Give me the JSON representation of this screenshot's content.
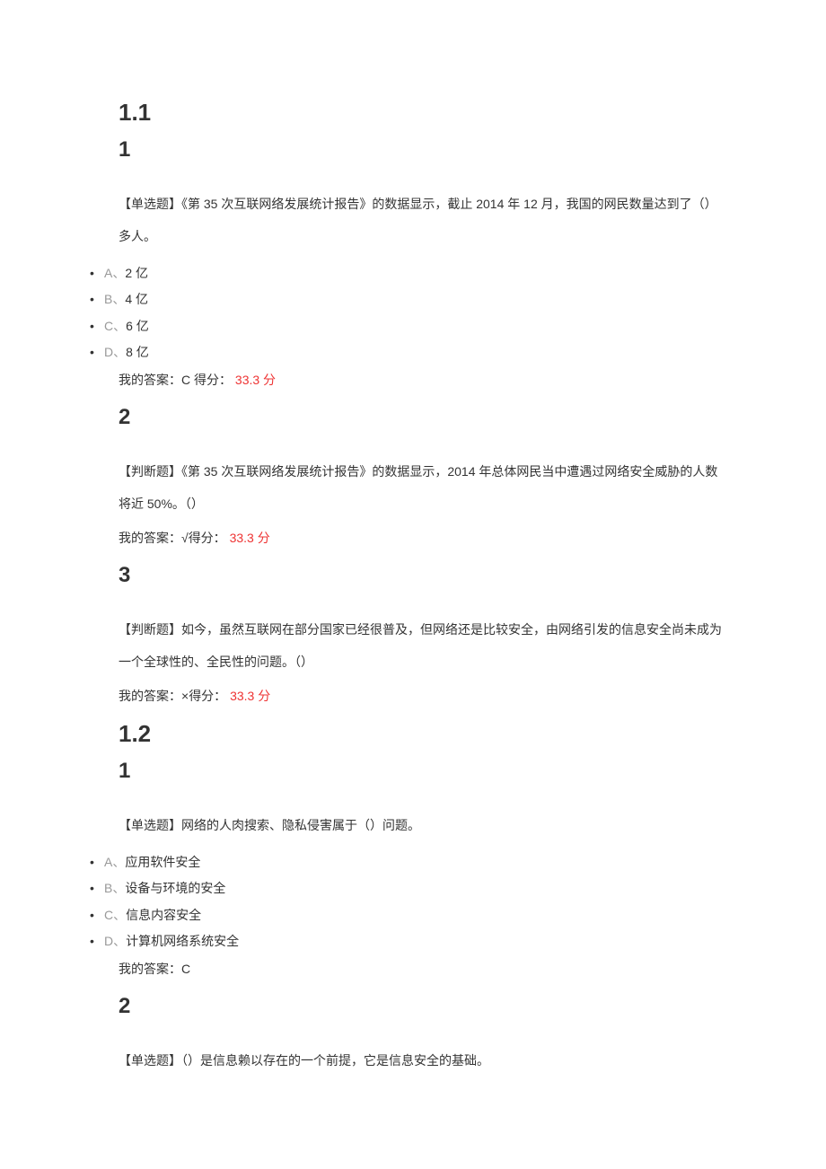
{
  "colors": {
    "text": "#333333",
    "muted": "#999999",
    "score": "#ee3333",
    "bg": "#ffffff"
  },
  "sections": [
    {
      "num": "1.1",
      "questions": [
        {
          "num": "1",
          "type": "【单选题】",
          "text": "《第 35 次互联网络发展统计报告》的数据显示，截止 2014 年 12 月，我国的网民数量达到了（）多人。",
          "options": [
            {
              "letter": "A",
              "text": "2 亿"
            },
            {
              "letter": "B",
              "text": "4 亿"
            },
            {
              "letter": "C",
              "text": "6 亿"
            },
            {
              "letter": "D",
              "text": "8 亿"
            }
          ],
          "answer_label": "我的答案：",
          "answer_value": "C",
          "score_label": " 得分： ",
          "score_value": "33.3",
          "score_unit": " 分"
        },
        {
          "num": "2",
          "type": "【判断题】",
          "text": "《第 35 次互联网络发展统计报告》的数据显示，2014 年总体网民当中遭遇过网络安全威胁的人数将近 50%。（）",
          "answer_label": "我的答案：",
          "answer_symbol": "√",
          "score_label": "得分： ",
          "score_value": "33.3",
          "score_unit": " 分"
        },
        {
          "num": "3",
          "type": "【判断题】",
          "text": "如今，虽然互联网在部分国家已经很普及，但网络还是比较安全，由网络引发的信息安全尚未成为一个全球性的、全民性的问题。（）",
          "answer_label": "我的答案：",
          "answer_symbol": "×",
          "score_label": "得分： ",
          "score_value": "33.3",
          "score_unit": " 分"
        }
      ]
    },
    {
      "num": "1.2",
      "questions": [
        {
          "num": "1",
          "type": "【单选题】",
          "text": "网络的人肉搜索、隐私侵害属于（）问题。",
          "options": [
            {
              "letter": "A",
              "text": "应用软件安全"
            },
            {
              "letter": "B",
              "text": "设备与环境的安全"
            },
            {
              "letter": "C",
              "text": "信息内容安全"
            },
            {
              "letter": "D",
              "text": "计算机网络系统安全"
            }
          ],
          "answer_label": "我的答案：",
          "answer_value": "C"
        },
        {
          "num": "2",
          "type": "【单选题】",
          "text": "（）是信息赖以存在的一个前提，它是信息安全的基础。"
        }
      ]
    }
  ]
}
